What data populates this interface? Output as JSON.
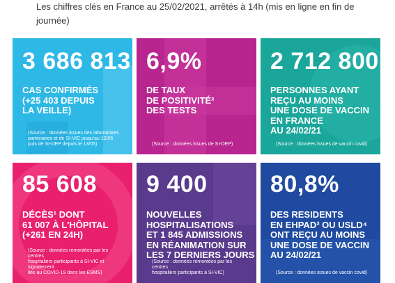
{
  "header": {
    "title": "Les chiffres clés en France au 25/02/2021, arrêtés à 14h (mis en ligne en fin de journée)"
  },
  "tiles": [
    {
      "id": "cases",
      "value": "3 686 813",
      "description": "CAS CONFIRMÉS\n(+25 403 DEPUIS\nLA VEILLE)",
      "source": "(Source : données issues des laboratoires\npartenaires et de SI-VIC jusqu'au 12/05\npuis de SI-DEP depuis le 13/05)",
      "color": "#2eb8e6"
    },
    {
      "id": "positivity",
      "value": "6,9%",
      "description": "DE TAUX\nDE POSITIVITÉ²\nDES TESTS",
      "source": "(Source : données issues de SI-DEP)",
      "color": "#b8258f"
    },
    {
      "id": "vaccinated",
      "value": "2 712 800",
      "description": "PERSONNES AYANT\nREÇU AU MOINS\nUNE DOSE DE VACCIN\nEN FRANCE\nAU 24/02/21",
      "source": "(Source : données issues de vaccin covid)",
      "color": "#1aa69a"
    },
    {
      "id": "deaths",
      "value": "85 608",
      "description": "DÉCÈS¹ DONT\n61 007 À L'HÔPITAL\n(+261 EN 24H)",
      "source": "(Source : données remontées par les centres\nhospitaliers participants à SI-VIC et signalement\nliés au COVID-19 dans les ESMS)",
      "color": "#e8206e"
    },
    {
      "id": "hospital",
      "value": "9 400",
      "description": "NOUVELLES\nHOSPITALISATIONS\nET 1 845 ADMISSIONS\nEN RÉANIMATION SUR\nLES 7 DERNIERS JOURS",
      "source": "(Source : données remontées par les centres\nhospitaliers participants à SI-VIC)",
      "color": "#5a3a8c"
    },
    {
      "id": "ehpad",
      "value": "80,8%",
      "description": "DES RESIDENTS\nEN EHPAD³ OU USLD⁴\nONT REÇU AU MOINS\nUNE DOSE DE VACCIN\nAU 24/02/21",
      "source": "(Source : données issues de vaccin covid)",
      "color": "#1f4aa0"
    }
  ]
}
